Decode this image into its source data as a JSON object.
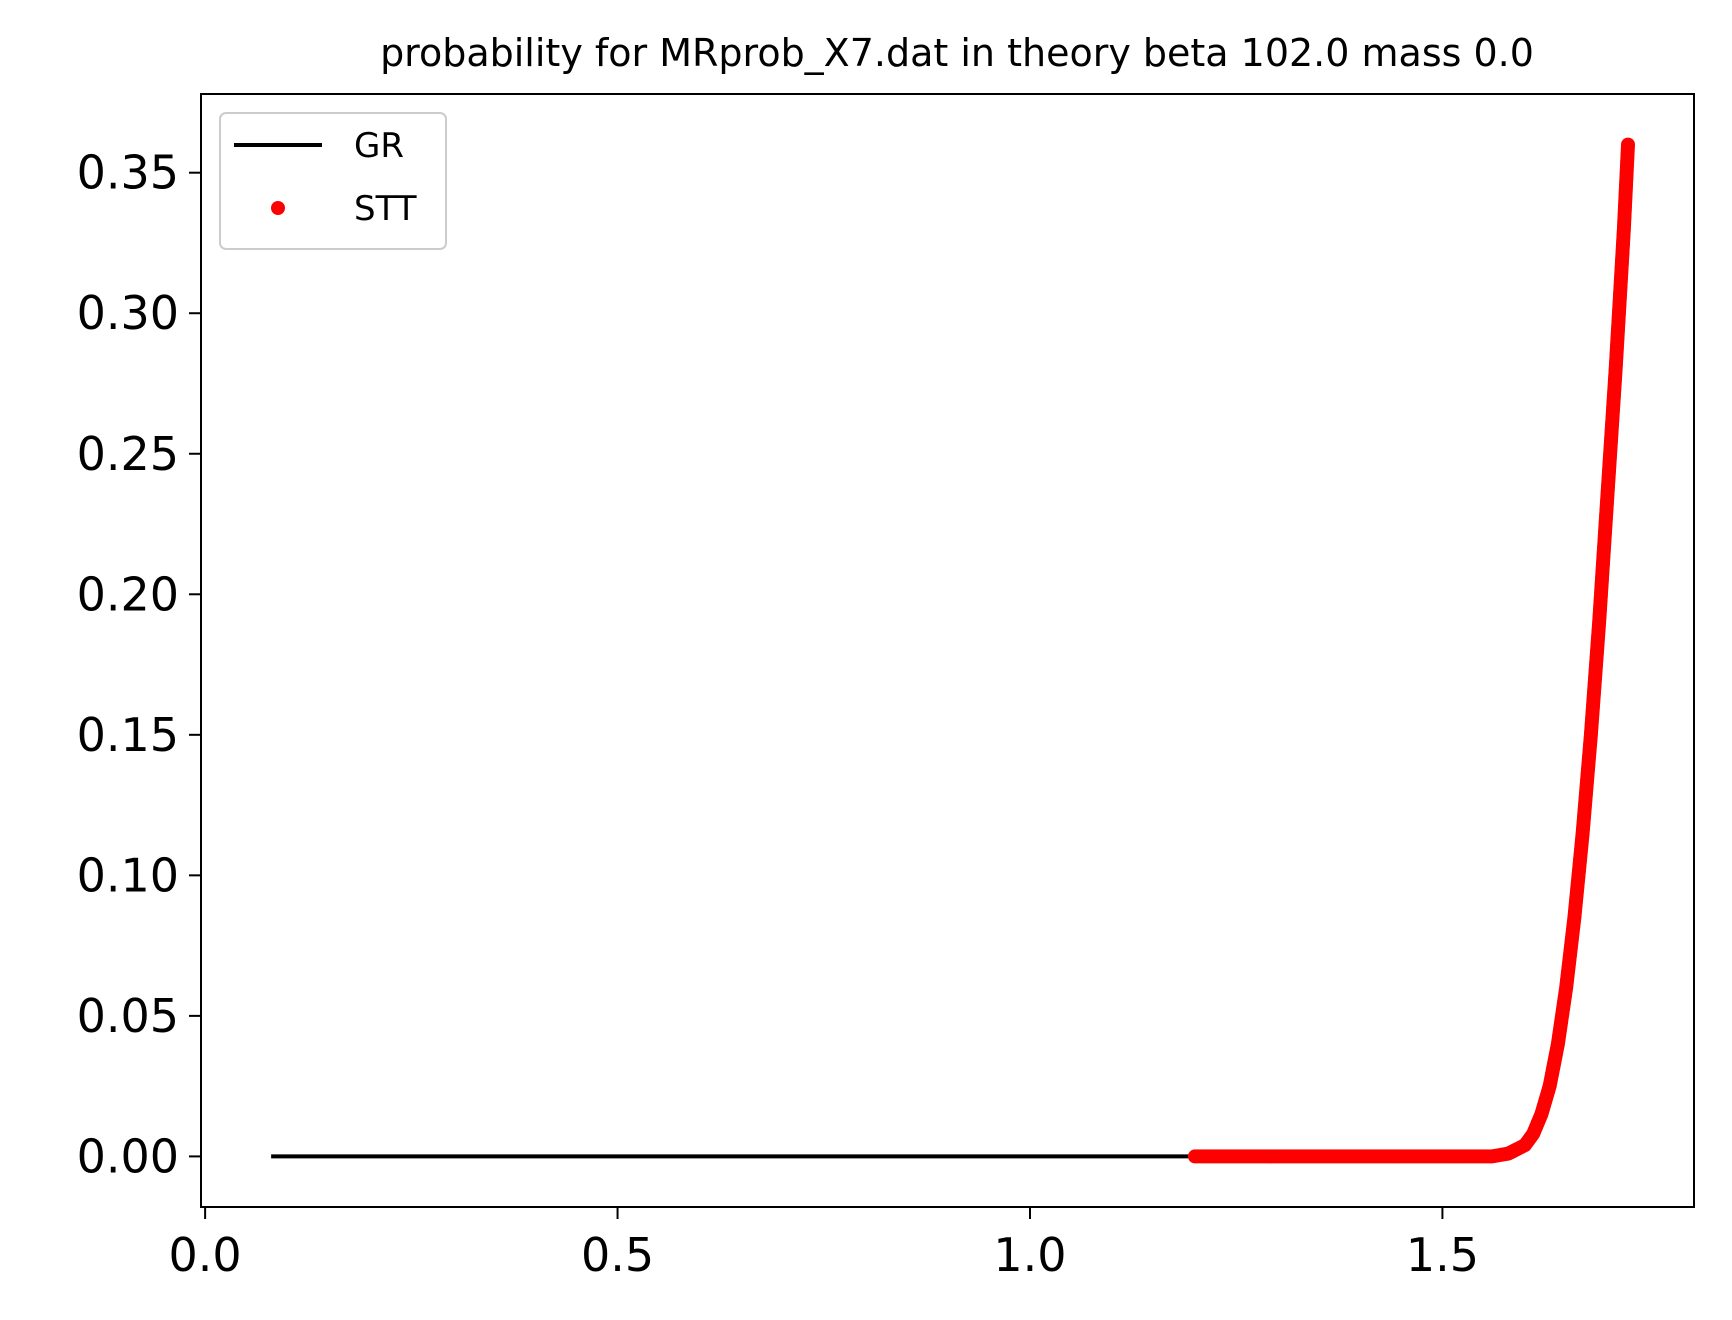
{
  "chart_data": {
    "type": "line",
    "title": "probability for MRprob_X7.dat in theory beta 102.0 mass 0.0",
    "xlabel": "",
    "ylabel": "",
    "xlim": [
      -0.005,
      1.805
    ],
    "ylim": [
      -0.018,
      0.378
    ],
    "xticks": [
      0.0,
      0.5,
      1.0,
      1.5
    ],
    "xtick_labels": [
      "0.0",
      "0.5",
      "1.0",
      "1.5"
    ],
    "yticks": [
      0.0,
      0.05,
      0.1,
      0.15,
      0.2,
      0.25,
      0.3,
      0.35
    ],
    "ytick_labels": [
      "0.00",
      "0.05",
      "0.10",
      "0.15",
      "0.20",
      "0.25",
      "0.30",
      "0.35"
    ],
    "grid": false,
    "legend_position": "top-left",
    "series": [
      {
        "name": "GR",
        "style": "line",
        "color": "#000000",
        "x": [
          0.08,
          1.2
        ],
        "y": [
          0.0,
          0.0
        ]
      },
      {
        "name": "STT",
        "style": "markers",
        "color": "#ff0000",
        "x": [
          1.2,
          1.3,
          1.4,
          1.5,
          1.56,
          1.58,
          1.6,
          1.61,
          1.62,
          1.63,
          1.64,
          1.65,
          1.66,
          1.67,
          1.68,
          1.69,
          1.7,
          1.71,
          1.72,
          1.725
        ],
        "y": [
          0.0,
          0.0,
          0.0,
          0.0,
          0.0,
          0.001,
          0.004,
          0.008,
          0.015,
          0.025,
          0.04,
          0.06,
          0.085,
          0.115,
          0.15,
          0.19,
          0.235,
          0.28,
          0.33,
          0.36
        ]
      }
    ]
  }
}
